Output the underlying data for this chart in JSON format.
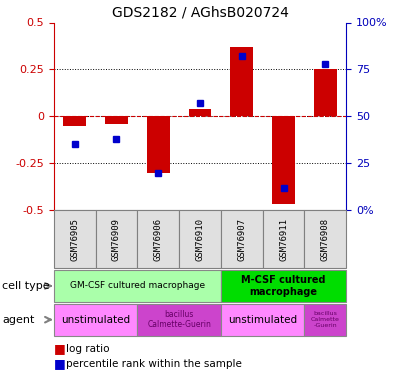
{
  "title": "GDS2182 / AGhsB020724",
  "samples": [
    "GSM76905",
    "GSM76909",
    "GSM76906",
    "GSM76910",
    "GSM76907",
    "GSM76911",
    "GSM76908"
  ],
  "log_ratio": [
    -0.05,
    -0.04,
    -0.3,
    0.04,
    0.37,
    -0.47,
    0.25
  ],
  "percentile_rank": [
    35,
    38,
    20,
    57,
    82,
    12,
    78
  ],
  "ylim_left": [
    -0.5,
    0.5
  ],
  "ylim_right": [
    0,
    100
  ],
  "bar_color": "#cc0000",
  "dot_color": "#0000cc",
  "zero_line_color": "#cc0000",
  "left_axis_color": "#cc0000",
  "right_axis_color": "#0000bb",
  "legend_red_label": "log ratio",
  "legend_blue_label": "percentile rank within the sample",
  "cell_type_label": "cell type",
  "agent_label": "agent",
  "gm_color": "#aaffaa",
  "mcsf_color": "#00dd00",
  "unstim_color": "#ff88ff",
  "bacillus_color": "#cc44cc"
}
